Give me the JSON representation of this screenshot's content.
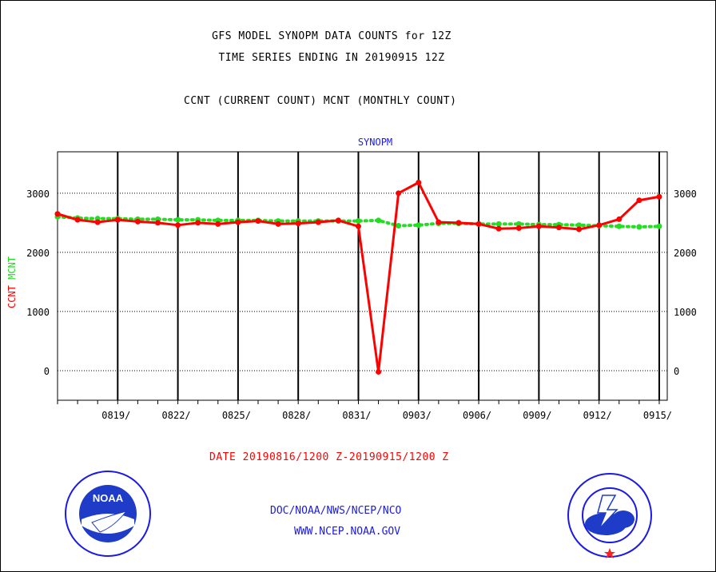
{
  "title_line1": "GFS MODEL SYNOPM DATA COUNTS for 12Z",
  "title_line2": "TIME SERIES ENDING IN 20190915 12Z",
  "legend_line": "CCNT (CURRENT COUNT) MCNT (MONTHLY COUNT)",
  "date_range": "DATE 20190816/1200 Z-20190915/1200 Z",
  "footer_org": "DOC/NOAA/NWS/NCEP/NCO",
  "footer_url": "WWW.NCEP.NOAA.GOV",
  "logos": {
    "left": "noaa-logo",
    "right": "nws-logo"
  },
  "colors": {
    "ccnt": "#ff0000",
    "mcnt": "#22dd22",
    "label_blue": "#1a1ae6"
  },
  "chart_data": {
    "type": "line",
    "title": "SYNOPM",
    "ylabel_parts": [
      "CCNT",
      "MCNT"
    ],
    "ylim": [
      -500,
      3700
    ],
    "yticks": [
      0,
      1000,
      2000,
      3000
    ],
    "ytick_labels": [
      "0",
      "1000",
      "2000",
      "3000"
    ],
    "xtick_labels": [
      "0819/",
      "0822/",
      "0825/",
      "0828/",
      "0831/",
      "0903/",
      "0906/",
      "0909/",
      "0912/",
      "0915/"
    ],
    "xtick_days": [
      3,
      6,
      9,
      12,
      15,
      18,
      21,
      24,
      27,
      30
    ],
    "xlim": [
      0,
      30.4
    ],
    "grid": true,
    "series": [
      {
        "name": "CCNT",
        "x": [
          0,
          1,
          2,
          3,
          4,
          5,
          6,
          7,
          8,
          9,
          10,
          11,
          12,
          13,
          14,
          15,
          16,
          17,
          18,
          19,
          20,
          21,
          22,
          23,
          24,
          25,
          26,
          27,
          28,
          29,
          30
        ],
        "values": [
          2650,
          2550,
          2510,
          2550,
          2520,
          2500,
          2460,
          2500,
          2480,
          2510,
          2530,
          2480,
          2490,
          2510,
          2540,
          2440,
          -20,
          3000,
          3180,
          2510,
          2500,
          2480,
          2400,
          2410,
          2440,
          2420,
          2390,
          2460,
          2560,
          2880,
          2940
        ]
      },
      {
        "name": "MCNT",
        "x": [
          0,
          1,
          2,
          3,
          4,
          5,
          6,
          7,
          8,
          9,
          10,
          11,
          12,
          13,
          14,
          15,
          16,
          17,
          18,
          19,
          20,
          21,
          22,
          23,
          24,
          25,
          26,
          27,
          28,
          29,
          30
        ],
        "values": [
          2600,
          2580,
          2570,
          2570,
          2560,
          2560,
          2550,
          2550,
          2540,
          2540,
          2540,
          2530,
          2530,
          2530,
          2530,
          2530,
          2540,
          2450,
          2460,
          2490,
          2490,
          2480,
          2480,
          2480,
          2470,
          2470,
          2460,
          2450,
          2440,
          2430,
          2440
        ]
      }
    ]
  }
}
